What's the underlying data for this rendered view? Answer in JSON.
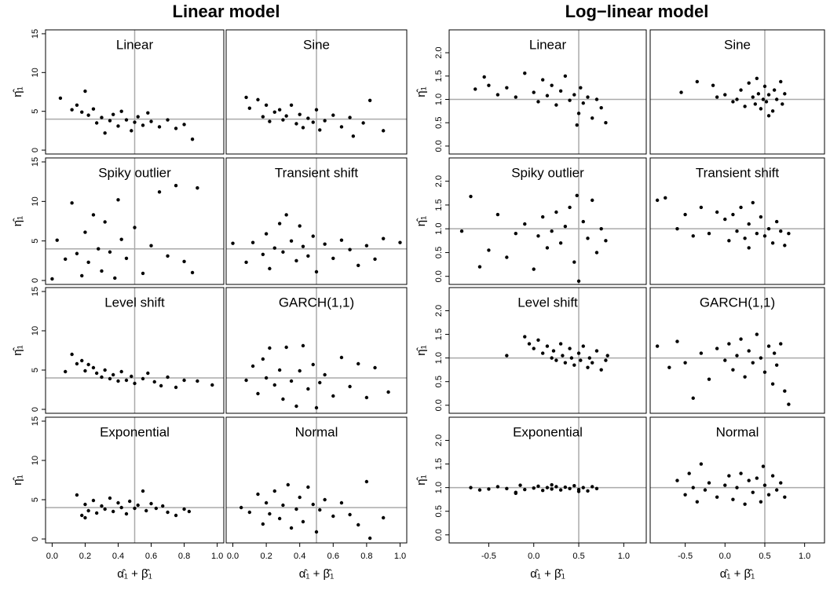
{
  "chart_data": [
    {
      "type": "scatter",
      "title": "Linear model",
      "x_label": "α̂₁ + β̂₁",
      "y_label": "η̂₁",
      "xlim": [
        -0.04,
        1.04
      ],
      "ylim": [
        -0.5,
        15.5
      ],
      "xticks": [
        {
          "value": 0,
          "label": "0.0"
        },
        {
          "value": 0.2,
          "label": "0.2"
        },
        {
          "value": 0.4,
          "label": "0.4"
        },
        {
          "value": 0.6,
          "label": "0.6"
        },
        {
          "value": 0.8,
          "label": "0.8"
        },
        {
          "value": 1,
          "label": "1.0"
        }
      ],
      "yticks": [
        0,
        5,
        10,
        15
      ],
      "hline": 4,
      "vline": 0.5,
      "color": "#000000",
      "line_color": "#aaaaaa",
      "panels": [
        {
          "label": "Linear",
          "x": [
            0.05,
            0.12,
            0.15,
            0.18,
            0.2,
            0.22,
            0.25,
            0.27,
            0.3,
            0.32,
            0.35,
            0.37,
            0.4,
            0.42,
            0.45,
            0.48,
            0.5,
            0.52,
            0.55,
            0.58,
            0.6,
            0.65,
            0.7,
            0.75,
            0.8,
            0.85
          ],
          "y": [
            6.7,
            5.2,
            5.8,
            4.9,
            7.6,
            4.5,
            5.3,
            3.5,
            4.2,
            2.2,
            3.8,
            4.6,
            3.1,
            5.0,
            3.9,
            2.5,
            3.6,
            4.3,
            3.2,
            4.8,
            3.7,
            3.0,
            3.9,
            2.8,
            3.3,
            1.4
          ]
        },
        {
          "label": "Sine",
          "x": [
            0.08,
            0.1,
            0.15,
            0.18,
            0.2,
            0.22,
            0.25,
            0.28,
            0.3,
            0.32,
            0.35,
            0.38,
            0.4,
            0.42,
            0.45,
            0.48,
            0.5,
            0.52,
            0.55,
            0.6,
            0.65,
            0.7,
            0.72,
            0.78,
            0.82,
            0.9
          ],
          "y": [
            6.8,
            5.4,
            6.5,
            4.3,
            5.8,
            3.7,
            4.9,
            5.2,
            3.9,
            4.4,
            5.8,
            3.4,
            4.6,
            2.9,
            4.1,
            3.6,
            5.2,
            2.6,
            3.8,
            4.5,
            3.0,
            4.2,
            1.8,
            3.5,
            6.4,
            2.5
          ]
        },
        {
          "label": "Spiky outlier",
          "x": [
            0.0,
            0.03,
            0.08,
            0.12,
            0.15,
            0.18,
            0.2,
            0.22,
            0.25,
            0.28,
            0.3,
            0.32,
            0.35,
            0.38,
            0.4,
            0.42,
            0.45,
            0.5,
            0.55,
            0.6,
            0.65,
            0.7,
            0.75,
            0.8,
            0.85,
            0.88
          ],
          "y": [
            0.2,
            5.1,
            2.7,
            9.8,
            3.4,
            0.6,
            6.1,
            2.3,
            8.3,
            4.0,
            1.2,
            7.4,
            3.6,
            0.3,
            10.2,
            5.2,
            2.8,
            6.7,
            0.9,
            4.4,
            11.2,
            3.1,
            12.0,
            2.4,
            1.0,
            11.7
          ]
        },
        {
          "label": "Transient shift",
          "x": [
            0.0,
            0.08,
            0.12,
            0.18,
            0.2,
            0.22,
            0.25,
            0.28,
            0.3,
            0.32,
            0.35,
            0.38,
            0.4,
            0.42,
            0.45,
            0.48,
            0.5,
            0.55,
            0.6,
            0.65,
            0.7,
            0.75,
            0.8,
            0.85,
            0.9,
            1.0
          ],
          "y": [
            4.7,
            2.3,
            4.8,
            3.3,
            5.9,
            1.5,
            4.1,
            7.2,
            3.6,
            8.3,
            5.0,
            2.5,
            6.9,
            4.3,
            3.1,
            5.6,
            1.1,
            4.6,
            2.8,
            5.1,
            3.9,
            1.9,
            4.4,
            2.7,
            5.3,
            4.8
          ]
        },
        {
          "label": "Level shift",
          "x": [
            0.08,
            0.12,
            0.15,
            0.18,
            0.2,
            0.22,
            0.25,
            0.27,
            0.3,
            0.32,
            0.35,
            0.37,
            0.4,
            0.42,
            0.45,
            0.48,
            0.5,
            0.55,
            0.58,
            0.62,
            0.66,
            0.7,
            0.75,
            0.8,
            0.88,
            0.97
          ],
          "y": [
            4.8,
            7.0,
            5.8,
            6.2,
            4.9,
            5.7,
            5.3,
            4.6,
            4.1,
            5.0,
            3.9,
            4.4,
            3.6,
            4.8,
            3.7,
            4.2,
            3.3,
            3.9,
            4.6,
            3.5,
            3.0,
            4.1,
            2.8,
            3.7,
            3.6,
            3.1
          ]
        },
        {
          "label": "GARCH(1,1)",
          "x": [
            0.08,
            0.12,
            0.15,
            0.18,
            0.2,
            0.22,
            0.25,
            0.28,
            0.3,
            0.32,
            0.35,
            0.38,
            0.4,
            0.42,
            0.45,
            0.48,
            0.5,
            0.52,
            0.55,
            0.6,
            0.65,
            0.7,
            0.75,
            0.8,
            0.85,
            0.93
          ],
          "y": [
            3.7,
            5.5,
            2.0,
            6.4,
            4.0,
            7.8,
            3.1,
            5.0,
            1.3,
            7.9,
            3.6,
            0.4,
            4.9,
            8.1,
            2.6,
            5.7,
            0.2,
            3.4,
            4.4,
            1.7,
            6.6,
            2.9,
            5.8,
            1.5,
            5.3,
            2.2
          ]
        },
        {
          "label": "Exponential",
          "x": [
            0.15,
            0.18,
            0.2,
            0.22,
            0.25,
            0.27,
            0.3,
            0.32,
            0.35,
            0.37,
            0.4,
            0.42,
            0.45,
            0.47,
            0.5,
            0.52,
            0.55,
            0.57,
            0.6,
            0.63,
            0.67,
            0.7,
            0.75,
            0.8,
            0.83,
            0.2
          ],
          "y": [
            5.6,
            3.0,
            4.4,
            3.6,
            4.9,
            3.3,
            4.2,
            3.8,
            5.2,
            3.5,
            4.6,
            4.0,
            3.2,
            4.8,
            3.9,
            4.3,
            6.1,
            3.6,
            4.5,
            3.9,
            4.2,
            3.4,
            3.0,
            3.8,
            3.5,
            2.7
          ]
        },
        {
          "label": "Normal",
          "x": [
            0.05,
            0.1,
            0.15,
            0.18,
            0.2,
            0.22,
            0.25,
            0.28,
            0.3,
            0.33,
            0.35,
            0.38,
            0.4,
            0.42,
            0.45,
            0.48,
            0.5,
            0.52,
            0.55,
            0.6,
            0.65,
            0.7,
            0.75,
            0.8,
            0.82,
            0.9
          ],
          "y": [
            4.0,
            3.4,
            5.7,
            1.9,
            4.6,
            3.2,
            6.1,
            2.6,
            4.3,
            6.9,
            1.4,
            3.8,
            5.3,
            2.2,
            6.6,
            4.4,
            0.9,
            3.7,
            5.0,
            2.9,
            4.6,
            3.1,
            1.8,
            7.3,
            0.1,
            2.7
          ]
        }
      ]
    },
    {
      "type": "scatter",
      "title": "Log−linear model",
      "x_label": "α̂₁ + β̂₁",
      "y_label": "η̂₁",
      "xlim": [
        -0.94,
        1.25
      ],
      "ylim": [
        -0.17,
        2.49
      ],
      "xticks": [
        {
          "value": -0.5,
          "label": "-0.5"
        },
        {
          "value": 0,
          "label": "0.0"
        },
        {
          "value": 0.5,
          "label": "0.5"
        },
        {
          "value": 1,
          "label": "1.0"
        }
      ],
      "yticks": [
        {
          "value": 0,
          "label": "0.0"
        },
        0.5,
        {
          "value": 1,
          "label": "1.0"
        },
        1.5,
        {
          "value": 2,
          "label": "2.0"
        }
      ],
      "hline": 1,
      "vline": 0.5,
      "color": "#000000",
      "line_color": "#aaaaaa",
      "panels": [
        {
          "label": "Linear",
          "x": [
            -0.65,
            -0.55,
            -0.5,
            -0.4,
            -0.3,
            -0.2,
            -0.1,
            0.0,
            0.05,
            0.1,
            0.15,
            0.2,
            0.25,
            0.3,
            0.35,
            0.4,
            0.45,
            0.5,
            0.52,
            0.55,
            0.6,
            0.65,
            0.7,
            0.75,
            0.8,
            0.48
          ],
          "y": [
            1.22,
            1.48,
            1.3,
            1.1,
            1.25,
            1.05,
            1.56,
            1.15,
            0.95,
            1.42,
            1.08,
            1.3,
            0.88,
            1.18,
            1.5,
            0.98,
            1.1,
            0.7,
            1.25,
            0.92,
            1.05,
            0.6,
            1.0,
            0.82,
            0.5,
            0.45
          ]
        },
        {
          "label": "Sine",
          "x": [
            -0.55,
            -0.35,
            -0.15,
            -0.1,
            0.0,
            0.1,
            0.15,
            0.2,
            0.25,
            0.3,
            0.35,
            0.38,
            0.4,
            0.42,
            0.45,
            0.48,
            0.5,
            0.52,
            0.55,
            0.6,
            0.62,
            0.65,
            0.7,
            0.72,
            0.75,
            0.55
          ],
          "y": [
            1.15,
            1.38,
            1.3,
            1.05,
            1.1,
            0.95,
            1.0,
            1.2,
            0.85,
            1.35,
            1.05,
            0.9,
            1.45,
            1.12,
            0.8,
            1.0,
            1.28,
            0.95,
            1.1,
            0.75,
            1.2,
            1.0,
            1.38,
            0.9,
            1.12,
            0.65
          ]
        },
        {
          "label": "Spiky outlier",
          "x": [
            -0.8,
            -0.7,
            -0.6,
            -0.5,
            -0.4,
            -0.3,
            -0.2,
            -0.1,
            0.0,
            0.05,
            0.1,
            0.15,
            0.2,
            0.25,
            0.3,
            0.35,
            0.4,
            0.45,
            0.48,
            0.5,
            0.55,
            0.6,
            0.65,
            0.7,
            0.75,
            0.8
          ],
          "y": [
            0.95,
            1.68,
            0.2,
            0.55,
            1.3,
            0.4,
            0.9,
            1.1,
            0.15,
            0.85,
            1.25,
            0.6,
            0.95,
            1.35,
            0.7,
            1.05,
            1.45,
            0.3,
            1.7,
            -0.1,
            1.15,
            0.8,
            1.6,
            0.5,
            1.0,
            0.75
          ]
        },
        {
          "label": "Transient shift",
          "x": [
            -0.85,
            -0.75,
            -0.6,
            -0.5,
            -0.4,
            -0.3,
            -0.2,
            -0.1,
            0.0,
            0.05,
            0.1,
            0.15,
            0.2,
            0.25,
            0.3,
            0.35,
            0.4,
            0.45,
            0.5,
            0.55,
            0.6,
            0.65,
            0.7,
            0.75,
            0.8,
            0.3
          ],
          "y": [
            1.6,
            1.65,
            1.0,
            1.3,
            0.85,
            1.45,
            0.9,
            1.35,
            1.2,
            0.75,
            1.3,
            0.95,
            1.45,
            0.8,
            1.1,
            1.55,
            0.9,
            1.25,
            0.85,
            1.0,
            0.7,
            1.15,
            0.95,
            0.65,
            0.9,
            0.6
          ]
        },
        {
          "label": "Level shift",
          "x": [
            -0.3,
            -0.1,
            -0.05,
            0.0,
            0.05,
            0.1,
            0.15,
            0.2,
            0.22,
            0.25,
            0.3,
            0.32,
            0.35,
            0.4,
            0.42,
            0.45,
            0.5,
            0.52,
            0.55,
            0.6,
            0.62,
            0.65,
            0.7,
            0.75,
            0.8,
            0.82
          ],
          "y": [
            1.05,
            1.45,
            1.3,
            1.2,
            1.38,
            1.1,
            1.25,
            1.0,
            1.15,
            0.95,
            1.3,
            1.05,
            0.9,
            1.2,
            1.0,
            0.85,
            1.1,
            0.95,
            1.25,
            0.8,
            1.0,
            0.9,
            1.15,
            0.75,
            0.95,
            1.05
          ]
        },
        {
          "label": "GARCH(1,1)",
          "x": [
            -0.85,
            -0.7,
            -0.6,
            -0.5,
            -0.4,
            -0.3,
            -0.2,
            -0.1,
            0.0,
            0.05,
            0.1,
            0.15,
            0.2,
            0.25,
            0.3,
            0.35,
            0.4,
            0.45,
            0.5,
            0.55,
            0.6,
            0.62,
            0.65,
            0.7,
            0.75,
            0.8
          ],
          "y": [
            1.25,
            0.8,
            1.35,
            0.9,
            0.15,
            1.1,
            0.55,
            1.2,
            0.95,
            1.3,
            0.75,
            1.05,
            1.4,
            0.6,
            1.15,
            0.9,
            1.5,
            1.0,
            0.7,
            1.25,
            0.45,
            1.1,
            0.85,
            1.3,
            0.3,
            0.02
          ]
        },
        {
          "label": "Exponential",
          "x": [
            -0.7,
            -0.6,
            -0.5,
            -0.4,
            -0.3,
            -0.2,
            -0.15,
            -0.1,
            0.0,
            0.05,
            0.1,
            0.15,
            0.2,
            0.25,
            0.3,
            0.35,
            0.4,
            0.45,
            0.5,
            0.55,
            0.6,
            0.65,
            0.7,
            -0.2,
            0.2,
            0.5
          ],
          "y": [
            1.0,
            0.95,
            0.97,
            1.02,
            0.98,
            0.9,
            1.05,
            0.96,
            0.99,
            1.03,
            0.94,
            1.0,
            0.97,
            1.02,
            0.95,
            1.01,
            0.98,
            1.04,
            0.96,
            1.0,
            0.93,
            1.02,
            0.98,
            0.88,
            1.06,
            0.92
          ]
        },
        {
          "label": "Normal",
          "x": [
            -0.6,
            -0.5,
            -0.45,
            -0.4,
            -0.35,
            -0.3,
            -0.25,
            -0.2,
            -0.1,
            0.0,
            0.05,
            0.1,
            0.15,
            0.2,
            0.25,
            0.3,
            0.35,
            0.4,
            0.45,
            0.48,
            0.5,
            0.55,
            0.6,
            0.65,
            0.7,
            0.75
          ],
          "y": [
            1.15,
            0.85,
            1.3,
            1.0,
            0.7,
            1.5,
            0.95,
            1.1,
            0.8,
            1.05,
            1.25,
            0.75,
            1.0,
            1.3,
            0.65,
            1.15,
            0.9,
            1.2,
            0.7,
            1.45,
            1.05,
            0.85,
            1.25,
            0.95,
            1.1,
            0.8
          ]
        }
      ]
    }
  ]
}
